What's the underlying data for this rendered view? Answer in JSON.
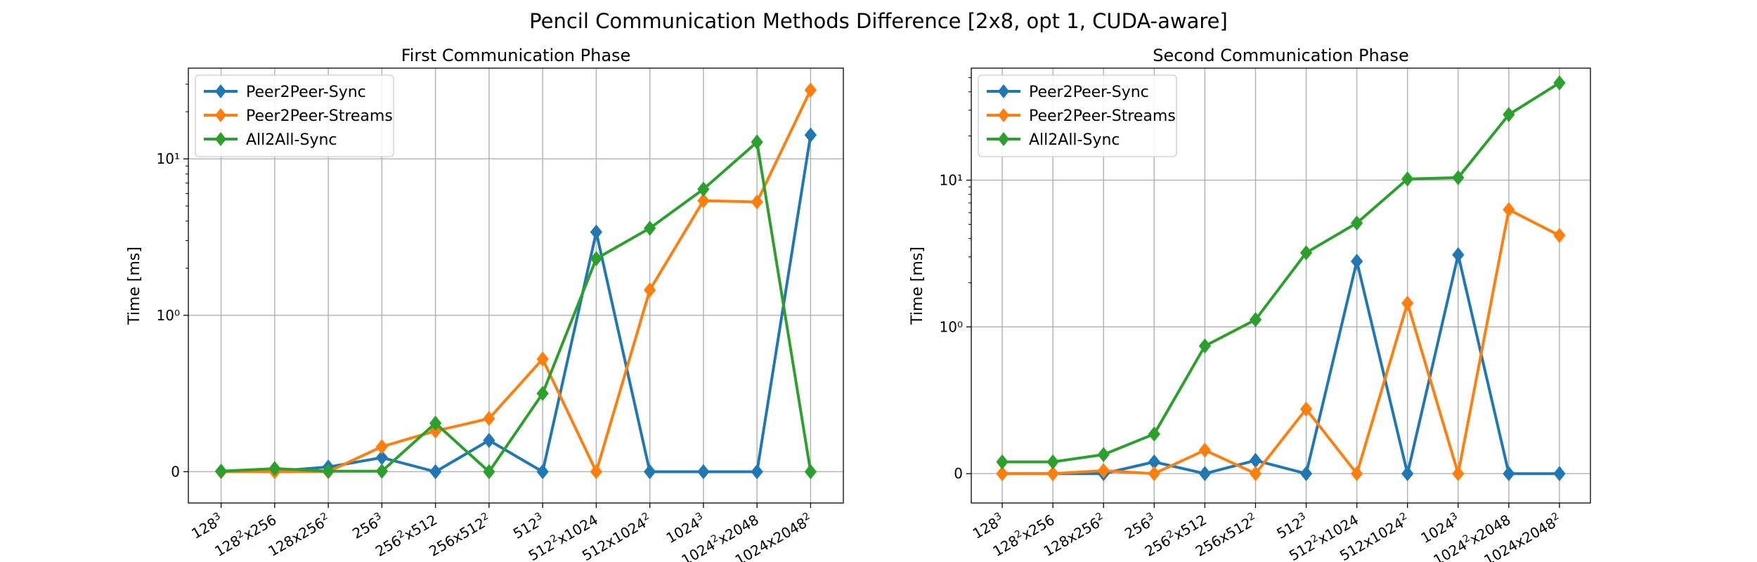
{
  "figure": {
    "suptitle": "Pencil Communication Methods Difference [2x8, opt 1, CUDA-aware]"
  },
  "colors": {
    "Peer2Peer-Sync": "#1f77b4",
    "Peer2Peer-Streams": "#ff7f0e",
    "All2All-Sync": "#2ca02c"
  },
  "chart_data": [
    {
      "type": "line",
      "title": "First Communication Phase",
      "xlabel": "",
      "ylabel": "Time [ms]",
      "yscale": "symlog",
      "linthresh": 1,
      "ylim": [
        -0.2,
        38
      ],
      "yticks": [
        "0",
        "10⁰",
        "10¹"
      ],
      "grid": true,
      "legend": "top-left",
      "categories": [
        [
          "128",
          "3",
          ""
        ],
        [
          "128",
          "2",
          "x256"
        ],
        [
          "128x256",
          "2",
          ""
        ],
        [
          "256",
          "3",
          ""
        ],
        [
          "256",
          "2",
          "x512"
        ],
        [
          "256x512",
          "2",
          ""
        ],
        [
          "512",
          "3",
          ""
        ],
        [
          "512",
          "2",
          "x1024"
        ],
        [
          "512x1024",
          "2",
          ""
        ],
        [
          "1024",
          "3",
          ""
        ],
        [
          "1024",
          "2",
          "x2048"
        ],
        [
          "1024x2048",
          "2",
          ""
        ]
      ],
      "series": [
        {
          "name": "Peer2Peer-Sync",
          "values": [
            0.003,
            0.003,
            0.03,
            0.09,
            0.0,
            0.2,
            0.0,
            3.4,
            0.0,
            0.0,
            0.0,
            14.2
          ]
        },
        {
          "name": "Peer2Peer-Streams",
          "values": [
            0.0,
            0.0,
            0.0,
            0.16,
            0.26,
            0.34,
            0.72,
            0.0,
            1.45,
            5.4,
            5.3,
            27.5
          ]
        },
        {
          "name": "All2All-Sync",
          "values": [
            0.003,
            0.02,
            0.003,
            0.003,
            0.31,
            0.0,
            0.5,
            2.3,
            3.6,
            6.4,
            12.8,
            0.0
          ]
        }
      ]
    },
    {
      "type": "line",
      "title": "Second Communication Phase",
      "xlabel": "",
      "ylabel": "Time [ms]",
      "yscale": "symlog",
      "linthresh": 1,
      "ylim": [
        -0.2,
        58
      ],
      "yticks": [
        "0",
        "10⁰",
        "10¹"
      ],
      "grid": true,
      "legend": "top-left",
      "categories": [
        [
          "128",
          "3",
          ""
        ],
        [
          "128",
          "2",
          "x256"
        ],
        [
          "128x256",
          "2",
          ""
        ],
        [
          "256",
          "3",
          ""
        ],
        [
          "256",
          "2",
          "x512"
        ],
        [
          "256x512",
          "2",
          ""
        ],
        [
          "512",
          "3",
          ""
        ],
        [
          "512",
          "2",
          "x1024"
        ],
        [
          "512x1024",
          "2",
          ""
        ],
        [
          "1024",
          "3",
          ""
        ],
        [
          "1024",
          "2",
          "x2048"
        ],
        [
          "1024x2048",
          "2",
          ""
        ]
      ],
      "series": [
        {
          "name": "Peer2Peer-Sync",
          "values": [
            0.0,
            0.0,
            0.0,
            0.08,
            0.0,
            0.09,
            0.0,
            2.8,
            0.0,
            3.1,
            0.0,
            0.0
          ]
        },
        {
          "name": "Peer2Peer-Streams",
          "values": [
            0.0,
            0.0,
            0.02,
            0.0,
            0.16,
            0.0,
            0.44,
            0.0,
            1.45,
            0.0,
            6.3,
            4.2
          ]
        },
        {
          "name": "All2All-Sync",
          "values": [
            0.08,
            0.08,
            0.13,
            0.27,
            0.87,
            1.12,
            3.2,
            5.1,
            10.2,
            10.4,
            28.0,
            46.0
          ]
        }
      ]
    }
  ]
}
